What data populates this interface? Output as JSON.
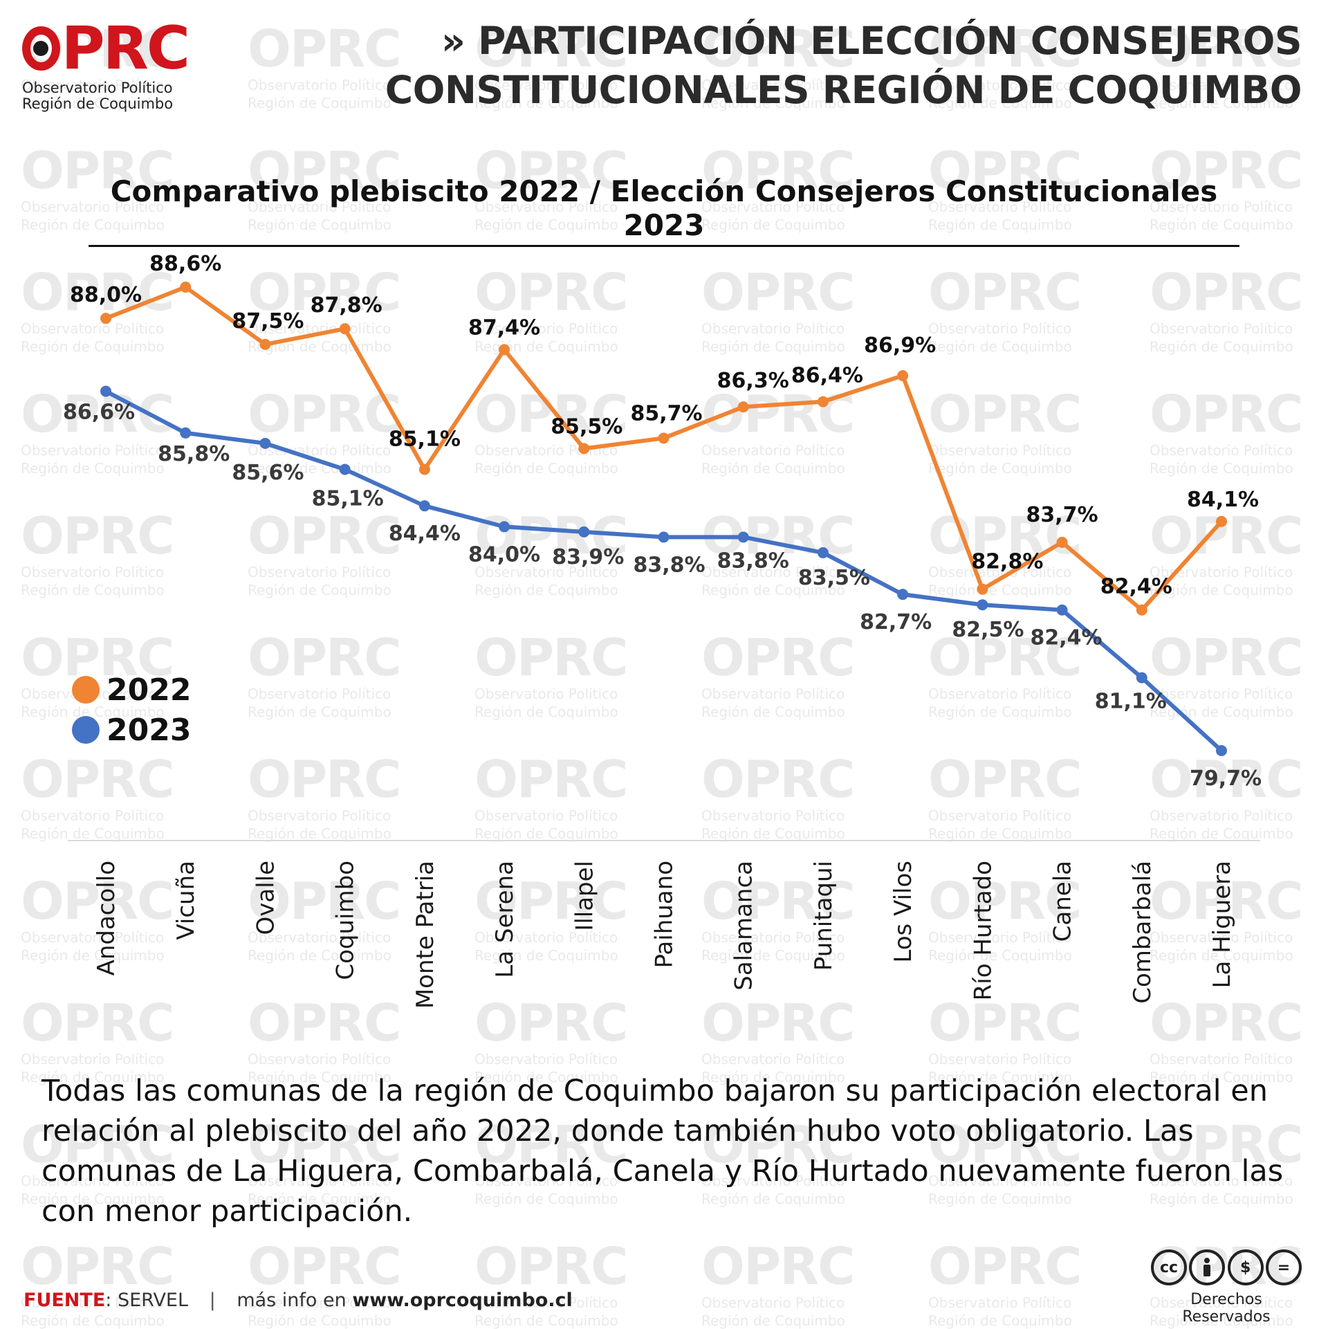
{
  "branding": {
    "logo_text": "OPRC",
    "org_line1": "Observatorio Político",
    "org_line2": "Región de Coquimbo"
  },
  "header": {
    "chevron": "»",
    "line1": "PARTICIPACIÓN ELECCIÓN CONSEJEROS",
    "line2": "CONSTITUCIONALES REGIÓN DE COQUIMBO"
  },
  "chart_data": {
    "type": "line",
    "title": "Comparativo plebiscito 2022 / Elección Consejeros Constitucionales 2023",
    "categories": [
      "Andacollo",
      "Vicuña",
      "Ovalle",
      "Coquimbo",
      "Monte Patria",
      "La Serena",
      "Illapel",
      "Paihuano",
      "Salamanca",
      "Punitaqui",
      "Los Vilos",
      "Río Hurtado",
      "Canela",
      "Combarbalá",
      "La Higuera"
    ],
    "series": [
      {
        "name": "2022",
        "color": "#ef8433",
        "values": [
          88.0,
          88.6,
          87.5,
          87.8,
          85.1,
          87.4,
          85.5,
          85.7,
          86.3,
          86.4,
          86.9,
          82.8,
          83.7,
          82.4,
          84.1
        ],
        "labels": [
          "88,0%",
          "88,6%",
          "87,5%",
          "87,8%",
          "85,1%",
          "87,4%",
          "85,5%",
          "85,7%",
          "86,3%",
          "86,4%",
          "86,9%",
          "82,8%",
          "83,7%",
          "82,4%",
          "84,1%"
        ]
      },
      {
        "name": "2023",
        "color": "#4472c4",
        "values": [
          86.6,
          85.8,
          85.6,
          85.1,
          84.4,
          84.0,
          83.9,
          83.8,
          83.8,
          83.5,
          82.7,
          82.5,
          82.4,
          81.1,
          79.7
        ],
        "labels": [
          "86,6%",
          "85,8%",
          "85,6%",
          "85,1%",
          "84,4%",
          "84,0%",
          "83,9%",
          "83,8%",
          "83,8%",
          "83,5%",
          "82,7%",
          "82,5%",
          "82,4%",
          "81,1%",
          "79,7%"
        ]
      }
    ],
    "xlabel": "",
    "ylabel": "",
    "y_axis_visible": false,
    "grid": false,
    "legend_position": "left-middle"
  },
  "note": {
    "text": "Todas las comunas de la región de Coquimbo bajaron su participación electoral en relación al plebiscito del año 2022, donde también hubo voto obligatorio. Las comunas de La Higuera, Combarbalá, Canela y Río Hurtado nuevamente fueron las con menor participación."
  },
  "footer": {
    "source_label": "FUENTE",
    "source_value": ": SERVEL",
    "separator": "|",
    "more_info": "más info en ",
    "url": "www.oprcoquimbo.cl"
  },
  "license": {
    "icons": [
      "cc-icon",
      "by-icon",
      "nc-icon",
      "nd-icon"
    ],
    "cc": "cc",
    "nc": "$",
    "nd": "=",
    "rights": "Derechos Reservados"
  }
}
